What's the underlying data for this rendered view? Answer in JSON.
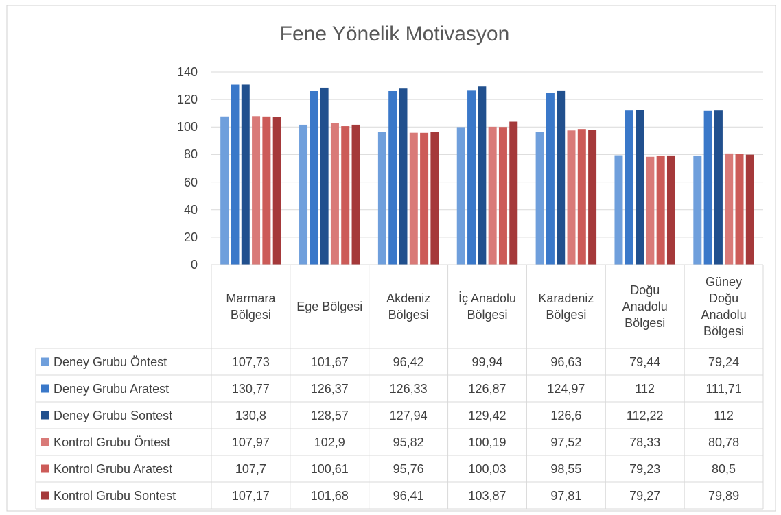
{
  "chart_data": {
    "type": "bar",
    "title": "Fene Yönelik Motivasyon",
    "categories": [
      "Marmara Bölgesi",
      "Ege Bölgesi",
      "Akdeniz Bölgesi",
      "İç Anadolu Bölgesi",
      "Karadeniz Bölgesi",
      "Doğu Anadolu Bölgesi",
      "Güney Doğu Anadolu Bölgesi"
    ],
    "series": [
      {
        "name": "Deney Grubu Öntest",
        "color": "#6f9fdc",
        "values": [
          107.73,
          101.67,
          96.42,
          99.94,
          96.63,
          79.44,
          79.24
        ],
        "value_labels": [
          "107,73",
          "101,67",
          "96,42",
          "99,94",
          "96,63",
          "79,44",
          "79,24"
        ]
      },
      {
        "name": "Deney Grubu Aratest",
        "color": "#3a78c9",
        "values": [
          130.77,
          126.37,
          126.33,
          126.87,
          124.97,
          112,
          111.71
        ],
        "value_labels": [
          "130,77",
          "126,37",
          "126,33",
          "126,87",
          "124,97",
          "112",
          "111,71"
        ]
      },
      {
        "name": "Deney Grubu Sontest",
        "color": "#21508e",
        "values": [
          130.8,
          128.57,
          127.94,
          129.42,
          126.6,
          112.22,
          112
        ],
        "value_labels": [
          "130,8",
          "128,57",
          "127,94",
          "129,42",
          "126,6",
          "112,22",
          "112"
        ]
      },
      {
        "name": "Kontrol Grubu Öntest",
        "color": "#d97a78",
        "values": [
          107.97,
          102.9,
          95.82,
          100.19,
          97.52,
          78.33,
          80.78
        ],
        "value_labels": [
          "107,97",
          "102,9",
          "95,82",
          "100,19",
          "97,52",
          "78,33",
          "80,78"
        ]
      },
      {
        "name": "Kontrol Grubu Aratest",
        "color": "#cc5b58",
        "values": [
          107.7,
          100.61,
          95.76,
          100.03,
          98.55,
          79.23,
          80.5
        ],
        "value_labels": [
          "107,7",
          "100,61",
          "95,76",
          "100,03",
          "98,55",
          "79,23",
          "80,5"
        ]
      },
      {
        "name": "Kontrol Grubu Sontest",
        "color": "#a5393a",
        "values": [
          107.17,
          101.68,
          96.41,
          103.87,
          97.81,
          79.27,
          79.89
        ],
        "value_labels": [
          "107,17",
          "101,68",
          "96,41",
          "103,87",
          "97,81",
          "79,27",
          "79,89"
        ]
      }
    ],
    "ylim": [
      0,
      140
    ],
    "yticks": [
      0,
      20,
      40,
      60,
      80,
      100,
      120,
      140
    ],
    "grid": true
  }
}
